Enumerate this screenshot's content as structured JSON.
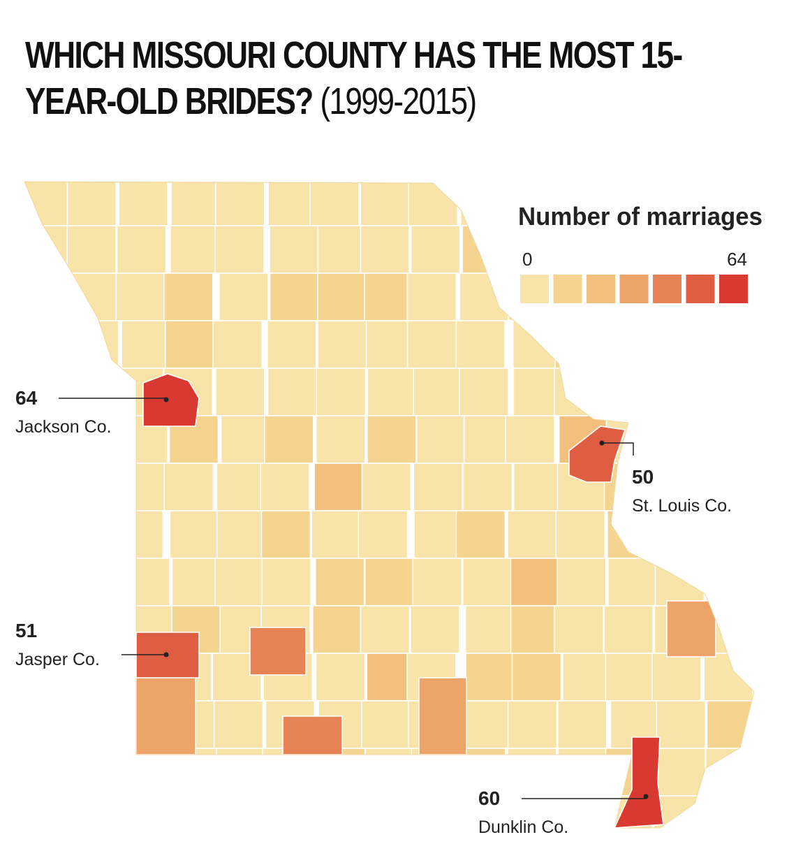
{
  "header": {
    "title": "WHICH MISSOURI COUNTY HAS THE MOST 15-YEAR-OLD BRIDES?",
    "subtitle": "(1999-2015)"
  },
  "legend": {
    "title": "Number of marriages",
    "min": 0,
    "max": 64,
    "colors": [
      "#f8e4a8",
      "#f5d490",
      "#f2bf7c",
      "#eda468",
      "#e68253",
      "#df5d41",
      "#d83a32"
    ]
  },
  "callouts": [
    {
      "value": 64,
      "label": "Jackson Co."
    },
    {
      "value": 50,
      "label": "St. Louis Co."
    },
    {
      "value": 51,
      "label": "Jasper Co."
    },
    {
      "value": 60,
      "label": "Dunklin Co."
    }
  ]
}
